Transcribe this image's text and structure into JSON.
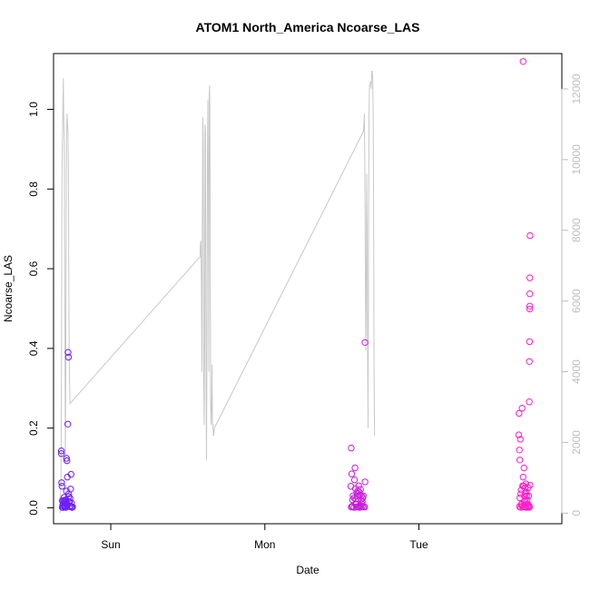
{
  "chart_data": {
    "type": "scatter",
    "title": "ATOM1 North_America Ncoarse_LAS",
    "xlabel": "Date",
    "ylabel": "Ncoarse_LAS",
    "x_ticks": [
      {
        "label": "Sun",
        "value": 1.0
      },
      {
        "label": "Mon",
        "value": 2.0
      },
      {
        "label": "Tue",
        "value": 3.0
      }
    ],
    "xlim": [
      0.6285,
      3.9278
    ],
    "ylim": [
      -0.04,
      1.14
    ],
    "y_ticks": [
      0.0,
      0.2,
      0.4,
      0.6,
      0.8,
      1.0
    ],
    "y_tick_labels": [
      "0.0",
      "0.2",
      "0.4",
      "0.6",
      "0.8",
      "1.0"
    ],
    "y2lim": [
      -300,
      13000
    ],
    "y2_ticks": [
      0,
      2000,
      4000,
      6000,
      8000,
      10000,
      12000
    ],
    "y2_tick_labels": [
      "0",
      "2000",
      "4000",
      "6000",
      "8000",
      "10000",
      "12000"
    ],
    "grid": false,
    "colors": {
      "line": "#c8c8c8",
      "points_start": "#6a1eff",
      "points_end": "#ff1ec8",
      "right_axis": "#bebebe",
      "frame": "#000000"
    },
    "scatter_points": [
      [
        0.679,
        0.143
      ],
      [
        0.679,
        0.136
      ],
      [
        0.681,
        0.063
      ],
      [
        0.683,
        0.054
      ],
      [
        0.685,
        0.018
      ],
      [
        0.688,
        0.006
      ],
      [
        0.69,
        0.001
      ],
      [
        0.693,
        0.018
      ],
      [
        0.697,
        0.026
      ],
      [
        0.7,
        0.003
      ],
      [
        0.703,
        0.012
      ],
      [
        0.706,
        0.02
      ],
      [
        0.709,
        0.001
      ],
      [
        0.712,
        0.042
      ],
      [
        0.712,
        0.124
      ],
      [
        0.715,
        0.118
      ],
      [
        0.718,
        0.077
      ],
      [
        0.721,
        0.21
      ],
      [
        0.723,
        0.39
      ],
      [
        0.725,
        0.378
      ],
      [
        0.727,
        0.028
      ],
      [
        0.73,
        0.016
      ],
      [
        0.733,
        0.003
      ],
      [
        0.736,
        0.024
      ],
      [
        0.739,
        0.047
      ],
      [
        0.742,
        0.084
      ],
      [
        0.745,
        0.012
      ],
      [
        0.748,
        0.001
      ],
      [
        0.752,
        0.002
      ],
      [
        0.69,
        0.01
      ],
      [
        0.697,
        0.015
      ],
      [
        0.703,
        0.005
      ],
      [
        0.715,
        0.01
      ],
      [
        0.727,
        0.035
      ],
      [
        0.736,
        0.005
      ],
      [
        0.709,
        0.02
      ],
      [
        0.685,
        0.001
      ],
      [
        0.742,
        0.003
      ],
      [
        0.733,
        0.015
      ],
      [
        0.7,
        0.002
      ],
      [
        2.558,
        0.054
      ],
      [
        2.561,
        0.15
      ],
      [
        2.564,
        0.085
      ],
      [
        2.567,
        0.004
      ],
      [
        2.57,
        0.02
      ],
      [
        2.573,
        0.03
      ],
      [
        2.579,
        0.025
      ],
      [
        2.582,
        0.07
      ],
      [
        2.585,
        0.1
      ],
      [
        2.588,
        0.048
      ],
      [
        2.591,
        0.022
      ],
      [
        2.594,
        0.009
      ],
      [
        2.597,
        0.038
      ],
      [
        2.6,
        0.03
      ],
      [
        2.603,
        0.042
      ],
      [
        2.606,
        0.003
      ],
      [
        2.609,
        0.055
      ],
      [
        2.612,
        0.04
      ],
      [
        2.615,
        0.032
      ],
      [
        2.618,
        0.005
      ],
      [
        2.621,
        0.046
      ],
      [
        2.624,
        0.021
      ],
      [
        2.627,
        0.03
      ],
      [
        2.63,
        0.01
      ],
      [
        2.633,
        0.004
      ],
      [
        2.636,
        0.025
      ],
      [
        2.639,
        0.03
      ],
      [
        2.642,
        0.003
      ],
      [
        2.648,
        0.002
      ],
      [
        2.65,
        0.065
      ],
      [
        2.65,
        0.415
      ],
      [
        2.561,
        0.002
      ],
      [
        2.57,
        0.003
      ],
      [
        2.579,
        0.001
      ],
      [
        2.594,
        0.002
      ],
      [
        2.603,
        0.003
      ],
      [
        2.615,
        0.001
      ],
      [
        2.624,
        0.002
      ],
      [
        2.633,
        0.015
      ],
      [
        2.588,
        0.01
      ],
      [
        3.648,
        0.183
      ],
      [
        3.65,
        0.237
      ],
      [
        3.652,
        0.145
      ],
      [
        3.655,
        0.12
      ],
      [
        3.658,
        0.172
      ],
      [
        3.661,
        0.035
      ],
      [
        3.664,
        0.045
      ],
      [
        3.667,
        0.01
      ],
      [
        3.67,
        0.25
      ],
      [
        3.673,
        0.055
      ],
      [
        3.676,
        0.077
      ],
      [
        3.679,
        0.055
      ],
      [
        3.682,
        0.1
      ],
      [
        3.685,
        0.03
      ],
      [
        3.688,
        0.05
      ],
      [
        3.691,
        0.02
      ],
      [
        3.694,
        0.06
      ],
      [
        3.697,
        0.04
      ],
      [
        3.7,
        0.03
      ],
      [
        3.703,
        0.02
      ],
      [
        3.706,
        0.01
      ],
      [
        3.709,
        0.05
      ],
      [
        3.712,
        0.03
      ],
      [
        3.715,
        0.005
      ],
      [
        3.718,
        0.002
      ],
      [
        3.721,
        0.057
      ],
      [
        3.721,
        0.683
      ],
      [
        3.72,
        0.577
      ],
      [
        3.72,
        0.537
      ],
      [
        3.719,
        0.506
      ],
      [
        3.719,
        0.499
      ],
      [
        3.718,
        0.417
      ],
      [
        3.717,
        0.367
      ],
      [
        3.716,
        0.266
      ],
      [
        3.676,
        1.12
      ],
      [
        3.652,
        0.003
      ],
      [
        3.661,
        0.001
      ],
      [
        3.67,
        0.004
      ],
      [
        3.679,
        0.002
      ],
      [
        3.688,
        0.003
      ],
      [
        3.697,
        0.001
      ],
      [
        3.706,
        0.002
      ],
      [
        3.715,
        0.001
      ],
      [
        3.655,
        0.025
      ],
      [
        3.685,
        0.015
      ],
      [
        3.7,
        0.006
      ],
      [
        3.664,
        0.008
      ],
      [
        3.691,
        0.035
      ]
    ],
    "line_points": [
      [
        0.671,
        0
      ],
      [
        0.674,
        500
      ],
      [
        0.677,
        1000
      ],
      [
        0.68,
        4000
      ],
      [
        0.683,
        9800
      ],
      [
        0.686,
        10500
      ],
      [
        0.689,
        11500
      ],
      [
        0.692,
        12300
      ],
      [
        0.695,
        11000
      ],
      [
        0.698,
        10500
      ],
      [
        0.701,
        7000
      ],
      [
        0.705,
        1500
      ],
      [
        0.708,
        4000
      ],
      [
        0.712,
        10500
      ],
      [
        0.716,
        11300
      ],
      [
        0.719,
        11000
      ],
      [
        0.722,
        10800
      ],
      [
        0.725,
        9600
      ],
      [
        0.728,
        6000
      ],
      [
        0.731,
        4000
      ],
      [
        0.735,
        3100
      ],
      [
        1.579,
        7250
      ],
      [
        1.582,
        7650
      ],
      [
        1.585,
        7700
      ],
      [
        1.588,
        6500
      ],
      [
        1.591,
        4000
      ],
      [
        1.594,
        8000
      ],
      [
        1.597,
        11200
      ],
      [
        1.6,
        10500
      ],
      [
        1.603,
        4000
      ],
      [
        1.606,
        2500
      ],
      [
        1.609,
        5000
      ],
      [
        1.612,
        11000
      ],
      [
        1.615,
        10800
      ],
      [
        1.618,
        3500
      ],
      [
        1.621,
        1500
      ],
      [
        1.624,
        5000
      ],
      [
        1.627,
        10000
      ],
      [
        1.63,
        11700
      ],
      [
        1.633,
        9000
      ],
      [
        1.636,
        4000
      ],
      [
        1.639,
        11800
      ],
      [
        1.642,
        12100
      ],
      [
        1.645,
        9000
      ],
      [
        1.648,
        3200
      ],
      [
        1.651,
        2500
      ],
      [
        1.654,
        3000
      ],
      [
        1.657,
        4200
      ],
      [
        1.66,
        2500
      ],
      [
        1.663,
        2500
      ],
      [
        1.666,
        2200
      ],
      [
        1.669,
        2200
      ],
      [
        1.672,
        2400
      ],
      [
        2.64,
        10800
      ],
      [
        2.643,
        11000
      ],
      [
        2.646,
        11300
      ],
      [
        2.649,
        10000
      ],
      [
        2.652,
        7000
      ],
      [
        2.655,
        4600
      ],
      [
        2.658,
        6000
      ],
      [
        2.661,
        9600
      ],
      [
        2.664,
        8000
      ],
      [
        2.667,
        4400
      ],
      [
        2.67,
        2400
      ],
      [
        2.673,
        7000
      ],
      [
        2.676,
        11100
      ],
      [
        2.679,
        12100
      ],
      [
        2.682,
        12100
      ],
      [
        2.685,
        12200
      ],
      [
        2.688,
        12200
      ],
      [
        2.691,
        12000
      ],
      [
        2.694,
        12500
      ],
      [
        2.697,
        12500
      ],
      [
        2.7,
        12300
      ],
      [
        2.703,
        11300
      ],
      [
        2.706,
        9000
      ],
      [
        2.709,
        4000
      ],
      [
        2.712,
        2200
      ]
    ]
  }
}
